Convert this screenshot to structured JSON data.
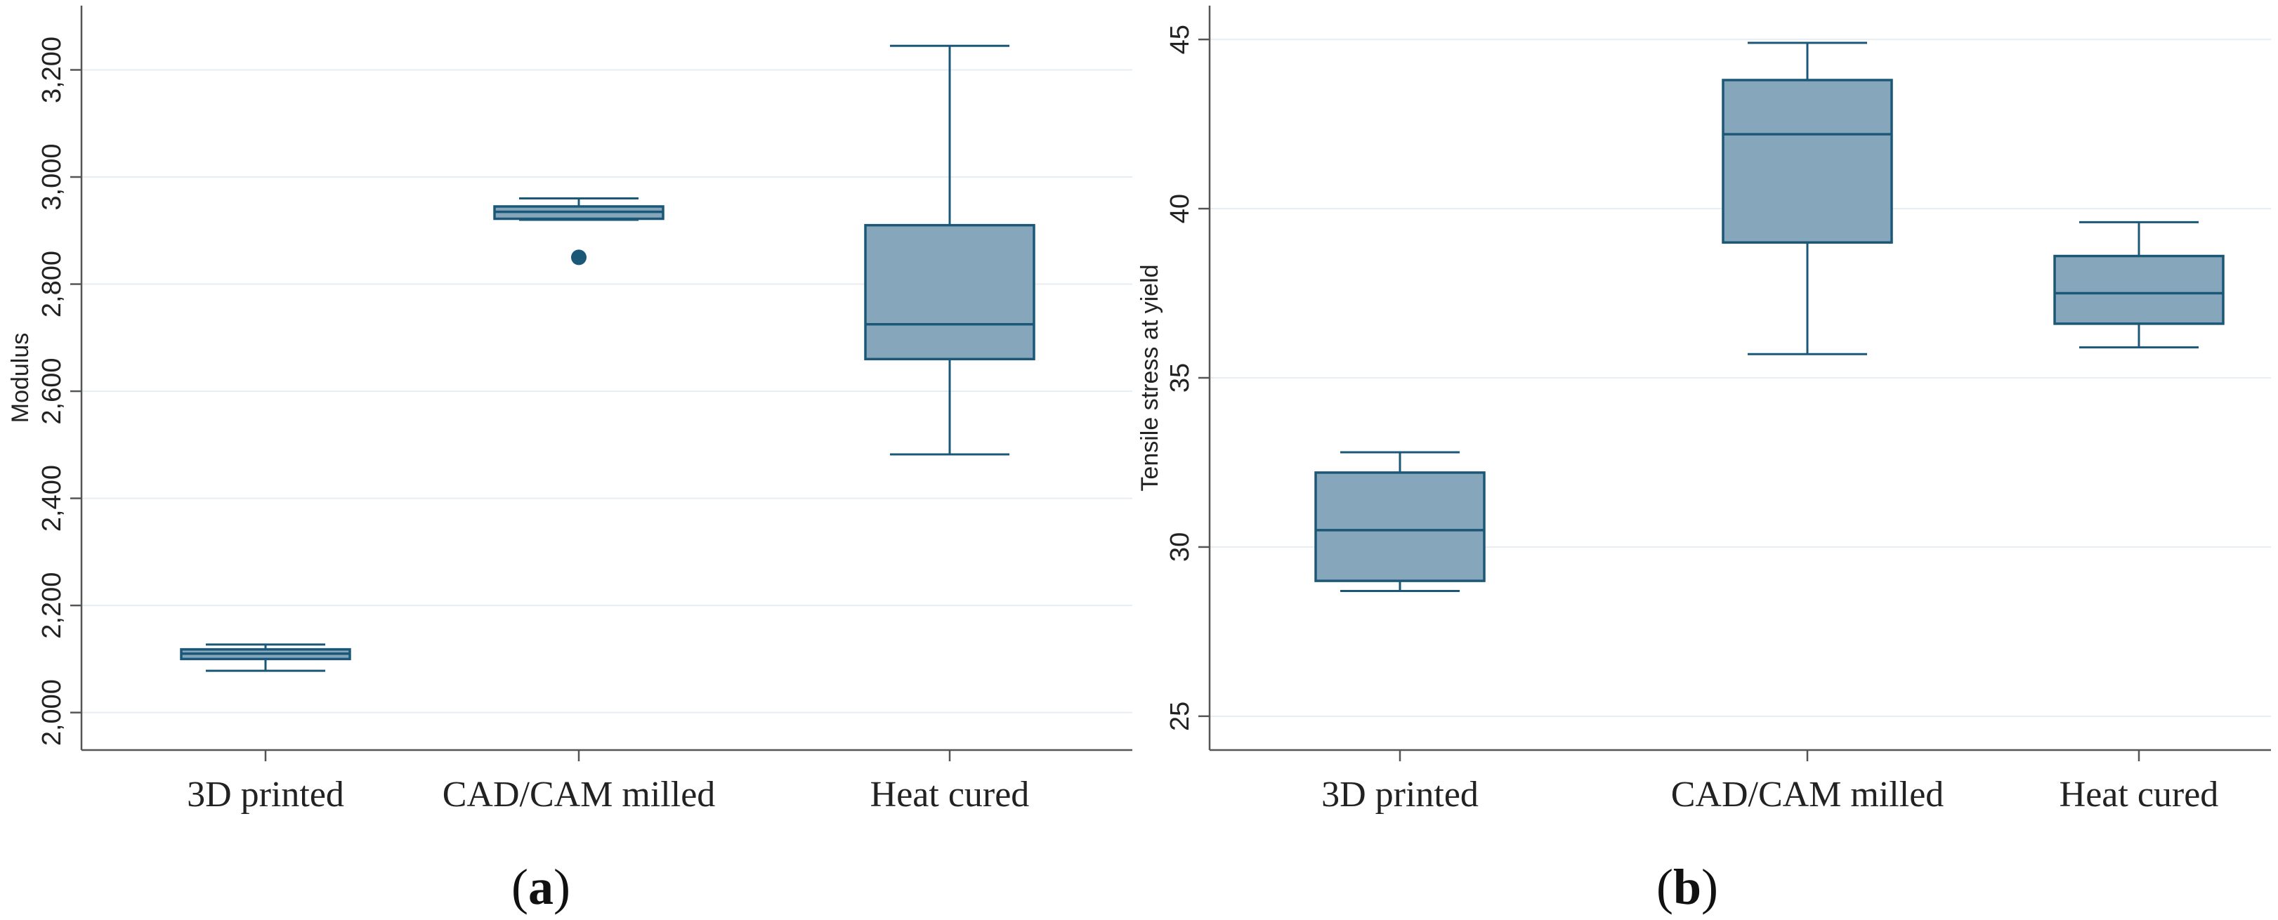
{
  "chart_data": [
    {
      "type": "box",
      "panel": "a",
      "ylabel": "Modulus",
      "ylim": [
        1930,
        3320
      ],
      "yticks": [
        2000,
        2200,
        2400,
        2600,
        2800,
        3000,
        3200
      ],
      "ytick_labels": [
        "2,000",
        "2,200",
        "2,400",
        "2,600",
        "2,800",
        "3,000",
        "3,200"
      ],
      "grid": true,
      "categories": [
        "3D printed",
        "CAD/CAM milled",
        "Heat cured"
      ],
      "boxes": [
        {
          "min": 2078,
          "q1": 2100,
          "median": 2110,
          "q3": 2118,
          "max": 2127,
          "outliers": []
        },
        {
          "min": 2920,
          "q1": 2922,
          "median": 2935,
          "q3": 2945,
          "max": 2960,
          "outliers": [
            2850
          ]
        },
        {
          "min": 2482,
          "q1": 2660,
          "median": 2725,
          "q3": 2910,
          "max": 3245,
          "outliers": []
        }
      ]
    },
    {
      "type": "box",
      "panel": "b",
      "ylabel": "Tensile stress at yield",
      "ylim": [
        24,
        46
      ],
      "yticks": [
        25,
        30,
        35,
        40,
        45
      ],
      "ytick_labels": [
        "25",
        "30",
        "35",
        "40",
        "45"
      ],
      "grid": true,
      "categories": [
        "3D printed",
        "CAD/CAM milled",
        "Heat cured"
      ],
      "boxes": [
        {
          "min": 28.7,
          "q1": 29.0,
          "median": 30.5,
          "q3": 32.2,
          "max": 32.8,
          "outliers": []
        },
        {
          "min": 35.7,
          "q1": 39.0,
          "median": 42.2,
          "q3": 43.8,
          "max": 44.9,
          "outliers": []
        },
        {
          "min": 35.9,
          "q1": 36.6,
          "median": 37.5,
          "q3": 38.6,
          "max": 39.6,
          "outliers": []
        }
      ]
    }
  ],
  "panel_labels": [
    "a",
    "b"
  ],
  "colors": {
    "box_fill": "#86a7bb",
    "box_stroke": "#1b5878",
    "outlier": "#1b5878",
    "grid": "#e6eef3",
    "axis": "#555555"
  }
}
